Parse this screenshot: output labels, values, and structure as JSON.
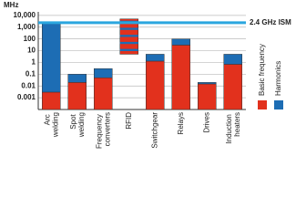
{
  "chart_data": {
    "type": "range_bar",
    "y_label": "MHz",
    "categories": [
      "Arc welding",
      "Spot welding",
      "Frequency converters",
      "RFID",
      "Switchgear",
      "Relays",
      "Drives",
      "Induction heaters"
    ],
    "series": [
      {
        "name": "Basic frequency",
        "color": "#e2311d",
        "values": [
          [
            0.0001,
            0.003
          ],
          [
            0.0001,
            0.02
          ],
          [
            0.0001,
            0.05
          ],
          [
            5,
            5000
          ],
          [
            0.0001,
            1.3
          ],
          [
            0.0001,
            30
          ],
          [
            0.0001,
            0.015
          ],
          [
            0.0001,
            0.7
          ]
        ]
      },
      {
        "name": "Harmonics",
        "color": "#1d6db4",
        "values": [
          [
            0.003,
            2000
          ],
          [
            0.02,
            0.1
          ],
          [
            0.05,
            0.3
          ],
          [
            5,
            5000
          ],
          [
            1.3,
            5
          ],
          [
            30,
            100
          ],
          [
            0.015,
            0.02
          ],
          [
            0.7,
            5
          ]
        ]
      }
    ],
    "reference_line": {
      "value": 2400,
      "label": "2.4 GHz ISM",
      "color": "#2aa6df"
    },
    "log_scale": true,
    "ylim": [
      0.0001,
      20000
    ],
    "yticks": [
      {
        "value": 10000,
        "label": "10,000"
      },
      {
        "value": 1000,
        "label": "1,000"
      },
      100,
      10,
      1,
      0.1,
      0.01,
      0.001
    ],
    "grid": true
  }
}
